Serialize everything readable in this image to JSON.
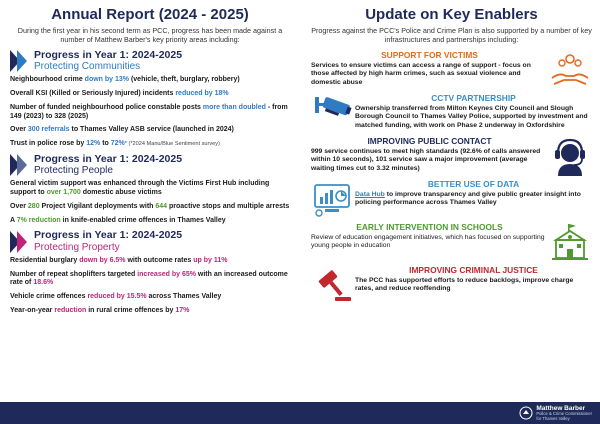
{
  "left": {
    "title": "Annual Report (2024 - 2025)",
    "intro": "During the first year in his second term as PCC, progress has been made against a number of Matthew Barber's key priority areas including:",
    "sections": [
      {
        "heading1": "Progress in Year 1: 2024-2025",
        "heading2": "Protecting Communities",
        "accent": "#2e7bc4"
      },
      {
        "heading1": "Progress in Year 1: 2024-2025",
        "heading2": "Protecting People",
        "accent": "#1f2a5a"
      },
      {
        "heading1": "Progress in Year 1: 2024-2025",
        "heading2": "Protecting Property",
        "accent": "#c0247a"
      }
    ],
    "communities": {
      "i1a": "Neighbourhood crime ",
      "i1b": "down by 13%",
      "i1c": " (vehicle, theft, burglary, robbery)",
      "i2a": "Overall KSI (Killed or Seriously Injured) incidents ",
      "i2b": "reduced by 18%",
      "i3a": "Number of funded neighbourhood police constable posts ",
      "i3b": "more than doubled",
      "i3c": " - from 149 (2023) to 328 (2025)",
      "i4a": "Over ",
      "i4b": "300 referrals",
      "i4c": " to Thames Valley ASB service (launched in 2024)",
      "i5a": "Trust in police rose by ",
      "i5b": "12%",
      "i5c": " to ",
      "i5d": "72%",
      "i5e": "* (*2024 Manu/Blue Sentiment survey)"
    },
    "people": {
      "i1a": "General victim support was enhanced through the Victims First Hub including support to ",
      "i1b": "over 1,700",
      "i1c": " domestic abuse victims",
      "i2a": "Over ",
      "i2b": "280",
      "i2c": " Project Vigilant deployments with ",
      "i2d": "644",
      "i2e": " proactive stops and multiple arrests",
      "i3a": "A ",
      "i3b": "7% reduction",
      "i3c": " in knife-enabled crime offences in Thames Valley"
    },
    "property": {
      "i1a": "Residential burglary ",
      "i1b": "down by 6.5%",
      "i1c": " with outcome rates ",
      "i1d": "up by 11%",
      "i2a": "Number of repeat shoplifters targeted ",
      "i2b": "increased by 65%",
      "i2c": " with an increased outcome rate of ",
      "i2d": "18.6%",
      "i3a": "Vehicle crime offences ",
      "i3b": "reduced by 15.5%",
      "i3c": " across Thames Valley",
      "i4a": "Year-on-year ",
      "i4b": "reduction",
      "i4c": " in rural crime offences by ",
      "i4d": "17%"
    }
  },
  "right": {
    "title": "Update on Key Enablers",
    "intro": "Progress against the PCC's Police and Crime Plan is also supported by a number of key infrastructures and partnerships including:",
    "enablers": [
      {
        "title": "SUPPORT FOR VICTIMS",
        "body": "Services to ensure victims can access a range of support - focus on those affected by high harm crimes, such as sexual violence and domestic abuse",
        "icon": "support-hands-icon",
        "color": "#e36a1e"
      },
      {
        "title": "CCTV PARTNERSHIP",
        "body": "Ownership transferred from Milton Keynes City Council and Slough Borough Council to Thames Valley Police, supported by investment and matched funding, with work on Phase 2 underway in Oxfordshire",
        "icon": "cctv-camera-icon",
        "color": "#2e7bc4"
      },
      {
        "title": "IMPROVING PUBLIC CONTACT",
        "body": "999 service continues to meet high standards (92.6% of calls answered within 10 seconds), 101 service saw a major improvement (average waiting times cut to 3.32 minutes)",
        "icon": "headset-operator-icon",
        "color": "#1f2a5a"
      },
      {
        "title": "BETTER USE OF DATA",
        "bodyLink": "Data Hub",
        "body": " to improve transparency and give public greater insight into policing performance across Thames Valley",
        "icon": "data-dashboard-icon",
        "color": "#3a8fc9"
      },
      {
        "title": "EARLY INTERVENTION IN SCHOOLS",
        "body": "Review of education engagement initiatives, which has focused on  supporting young people in education",
        "icon": "school-building-icon",
        "color": "#4e9a2f"
      },
      {
        "title": "IMPROVING CRIMINAL JUSTICE",
        "body": "The PCC has supported efforts to reduce backlogs, improve charge rates, and reduce reoffending",
        "icon": "gavel-icon",
        "color": "#c0282d"
      }
    ]
  },
  "footer": {
    "logo_name": "Matthew Barber",
    "logo_sub1": "Police & Crime Commissioner",
    "logo_sub2": "for Thames Valley",
    "bg": "#1f2a5a"
  }
}
